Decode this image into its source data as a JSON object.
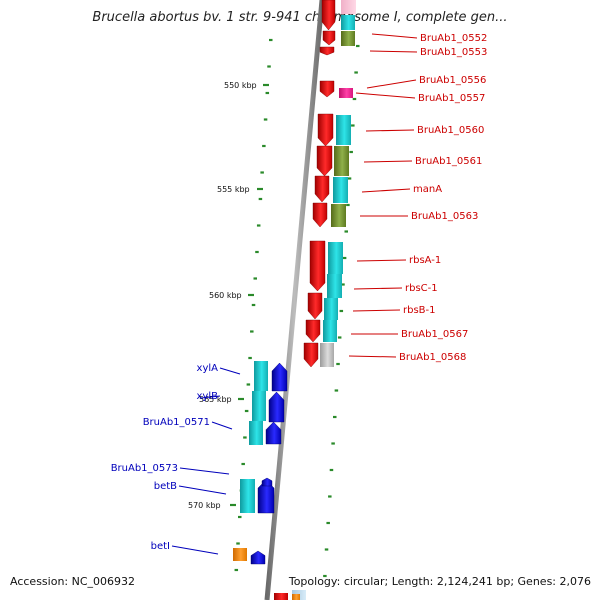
{
  "title": "Brucella abortus bv. 1 str. 9-941 chromosome I, complete gen...",
  "footer": {
    "accession": "Accession: NC_006932",
    "summary": "Topology: circular; Length: 2,124,241 bp; Genes: 2,076"
  },
  "scale_labels": [
    "550 kbp",
    "555 kbp",
    "560 kbp",
    "565 kbp",
    "570 kbp"
  ],
  "genes_forward": [
    "BruAb1_0552",
    "BruAb1_0553",
    "BruAb1_0556",
    "BruAb1_0557",
    "BruAb1_0560",
    "BruAb1_0561",
    "manA",
    "BruAb1_0563",
    "rbsA-1",
    "rbsC-1",
    "rbsB-1",
    "BruAb1_0567",
    "BruAb1_0568"
  ],
  "genes_reverse": [
    "xylA",
    "xylB",
    "BruAb1_0571",
    "BruAb1_0573",
    "betB",
    "betI"
  ],
  "colors": {
    "forward_label": "#cc0000",
    "reverse_label": "#0000bb",
    "cds_forward": "#e60000",
    "cds_reverse": "#0000dd",
    "cyan": "#1cc8cc",
    "olive": "#6b8e23",
    "pink": "#ff1493",
    "orange": "#ff8c00",
    "gray": "#b8b8b8",
    "tick": "#2a8a2a"
  }
}
